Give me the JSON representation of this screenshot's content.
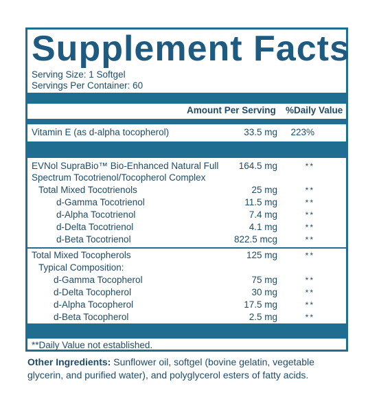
{
  "title": "Supplement Facts",
  "serving_size": "Serving Size: 1 Softgel",
  "servings_per_container": "Servings Per Container: 60",
  "header": {
    "amount": "Amount Per Serving",
    "daily_value": "%Daily Value"
  },
  "vitamin_e": {
    "name": "Vitamin E (as d-alpha tocopherol)",
    "amount": "33.5 mg",
    "dv": "223%"
  },
  "evnol": {
    "line1": "EVNol SupraBio™ Bio-Enhanced Natural Full",
    "line2": "Spectrum Tocotrienol/Tocopherol Complex",
    "amount": "164.5 mg",
    "dv": "**"
  },
  "tocotrienols": [
    {
      "name": "Total Mixed Tocotrienols",
      "amount": "25 mg",
      "dv": "**"
    },
    {
      "name": "d-Gamma Tocotrienol",
      "amount": "11.5 mg",
      "dv": "**"
    },
    {
      "name": "d-Alpha Tocotrienol",
      "amount": "7.4 mg",
      "dv": "**"
    },
    {
      "name": "d-Delta Tocotrienol",
      "amount": "4.1 mg",
      "dv": "**"
    },
    {
      "name": "d-Beta Tocotrienol",
      "amount": "822.5 mcg",
      "dv": "**"
    }
  ],
  "tocopherols": {
    "total": {
      "name": "Total Mixed Tocopherols",
      "amount": "125 mg",
      "dv": "**"
    },
    "typical": "Typical Composition:",
    "items": [
      {
        "name": "d-Gamma Tocopherol",
        "amount": "75 mg",
        "dv": "**"
      },
      {
        "name": "d-Delta Tocopherol",
        "amount": "30 mg",
        "dv": "**"
      },
      {
        "name": "d-Alpha Tocopherol",
        "amount": "17.5 mg",
        "dv": "**"
      },
      {
        "name": "d-Beta Tocopherol",
        "amount": "2.5 mg",
        "dv": "**"
      }
    ]
  },
  "footnote": "**Daily Value not established.",
  "other_ingredients": {
    "label": "Other Ingredients:",
    "text": " Sunflower oil, softgel (bovine gelatin, vegetable glycerin, and purified water), and polyglycerol esters of fatty acids."
  }
}
